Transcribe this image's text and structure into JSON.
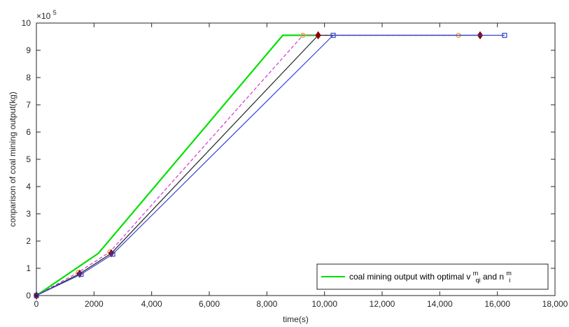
{
  "chart_data": {
    "type": "line",
    "title": "",
    "xlabel": "time(s)",
    "ylabel": "conparison of coal mining output(kg)",
    "y_exponent_label": "×10",
    "y_exponent_power": "5",
    "xlim": [
      0,
      18000
    ],
    "ylim": [
      0,
      10
    ],
    "x_ticks": [
      0,
      2000,
      4000,
      6000,
      8000,
      10000,
      12000,
      14000,
      16000,
      18000
    ],
    "x_tick_labels": [
      "0",
      "2000",
      "4,000",
      "6,000",
      "8,000",
      "10,000",
      "12,000",
      "14,000",
      "16,000",
      "18,000"
    ],
    "y_ticks": [
      0,
      1,
      2,
      3,
      4,
      5,
      6,
      7,
      8,
      9,
      10
    ],
    "y_tick_labels": [
      "0",
      "1",
      "2",
      "3",
      "4",
      "5",
      "6",
      "7",
      "8",
      "9",
      "10"
    ],
    "grid": false,
    "legend_position": "bottom-right",
    "legend": {
      "prefix": "coal mining output with optimal v",
      "v_sup": "m",
      "v_sub": "qi",
      "middle": " and n",
      "n_sup": "m",
      "n_sub": "i"
    },
    "series": [
      {
        "color": "#00e000",
        "style": "solid",
        "width": 2.2,
        "marker": "none",
        "x": [
          0,
          2150,
          8550,
          9750
        ],
        "y": [
          0,
          1.55,
          9.55,
          9.55
        ]
      },
      {
        "color": "#d633d6",
        "style": "dashed",
        "width": 1.2,
        "marker": "circle",
        "marker_color": "#f0a030",
        "x": [
          0,
          1450,
          2550,
          9250,
          14650
        ],
        "y": [
          0,
          0.85,
          1.6,
          9.55,
          9.55
        ]
      },
      {
        "color": "#222222",
        "style": "solid",
        "width": 1.2,
        "marker": "diamond",
        "marker_color": "#8b0000",
        "x": [
          0,
          1500,
          2600,
          9780,
          15400
        ],
        "y": [
          0,
          0.8,
          1.55,
          9.55,
          9.55
        ]
      },
      {
        "color": "#3344cc",
        "style": "solid",
        "width": 1.2,
        "marker": "square",
        "marker_color": "#3344cc",
        "x": [
          0,
          1550,
          2650,
          10300,
          16250
        ],
        "y": [
          0,
          0.78,
          1.52,
          9.55,
          9.55
        ]
      }
    ]
  }
}
